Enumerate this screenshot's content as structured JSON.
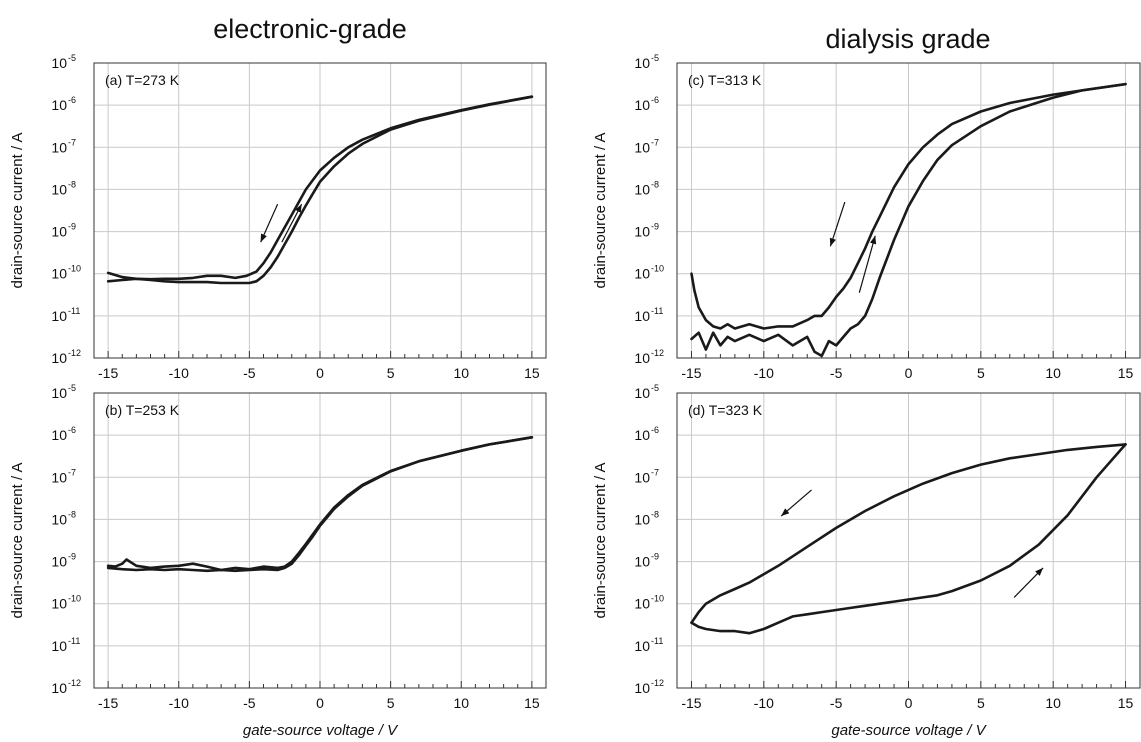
{
  "titles": {
    "left": "electronic-grade",
    "right": "dialysis grade"
  },
  "chart_data": [
    {
      "type": "line",
      "panel": "(a)",
      "temp_label": "T=273 K",
      "xlabel": "gate-source voltage / V",
      "ylabel": "drain-source current / A",
      "xlim": [
        -16,
        16
      ],
      "ylim_log10": [
        -12,
        -5
      ],
      "yscale": "log",
      "grid": true,
      "xticks": [
        -15,
        -10,
        -5,
        0,
        5,
        10,
        15
      ],
      "xtick_labels": [
        "-15",
        "-10",
        "-5",
        "0",
        "5",
        "10",
        "15"
      ],
      "ytick_exponents": [
        -12,
        -11,
        -10,
        -9,
        -8,
        -7,
        -6,
        -5
      ],
      "series": [
        {
          "x": [
            -15,
            -14,
            -13,
            -12,
            -11,
            -10,
            -9,
            -8,
            -7,
            -6,
            -5.2,
            -4.5,
            -4,
            -3.5,
            -3,
            -2.5,
            -2,
            -1.5,
            -1,
            0,
            1,
            2,
            3,
            5,
            7,
            10,
            12,
            15
          ],
          "log10_y": [
            -9.98,
            -10.08,
            -10.12,
            -10.13,
            -10.12,
            -10.12,
            -10.1,
            -10.05,
            -10.05,
            -10.1,
            -10.05,
            -9.95,
            -9.75,
            -9.5,
            -9.2,
            -8.9,
            -8.6,
            -8.3,
            -8.0,
            -7.55,
            -7.25,
            -7.0,
            -6.82,
            -6.55,
            -6.35,
            -6.12,
            -5.98,
            -5.8
          ]
        },
        {
          "x": [
            -15,
            -14,
            -13,
            -12,
            -11,
            -10,
            -9,
            -8,
            -7,
            -6,
            -5,
            -4.5,
            -4,
            -3.5,
            -3,
            -2.5,
            -2,
            -1.5,
            -1,
            -0.5,
            0,
            1,
            2,
            3,
            5,
            7,
            10,
            12,
            15
          ],
          "log10_y": [
            -10.18,
            -10.15,
            -10.12,
            -10.15,
            -10.18,
            -10.2,
            -10.2,
            -10.2,
            -10.22,
            -10.22,
            -10.22,
            -10.18,
            -10.05,
            -9.85,
            -9.6,
            -9.3,
            -9.0,
            -8.68,
            -8.38,
            -8.1,
            -7.82,
            -7.45,
            -7.15,
            -6.92,
            -6.58,
            -6.37,
            -6.13,
            -5.99,
            -5.8
          ]
        }
      ]
    },
    {
      "type": "line",
      "panel": "(b)",
      "temp_label": "T=253 K",
      "xlabel": "gate-source voltage / V",
      "ylabel": "drain-source current / A",
      "xlim": [
        -16,
        16
      ],
      "ylim_log10": [
        -12,
        -5
      ],
      "yscale": "log",
      "grid": true,
      "xticks": [
        -15,
        -10,
        -5,
        0,
        5,
        10,
        15
      ],
      "xtick_labels": [
        "-15",
        "-10",
        "-5",
        "0",
        "5",
        "10",
        "15"
      ],
      "ytick_exponents": [
        -12,
        -11,
        -10,
        -9,
        -8,
        -7,
        -6,
        -5
      ],
      "series": [
        {
          "x": [
            -15,
            -14.5,
            -14,
            -13.7,
            -13,
            -12,
            -11,
            -10,
            -9,
            -8,
            -7,
            -6,
            -5,
            -4,
            -3,
            -2.5,
            -2,
            -1.5,
            -1,
            -0.5,
            0,
            1,
            2,
            3,
            5,
            7,
            10,
            12,
            15
          ],
          "log10_y": [
            -9.1,
            -9.12,
            -9.05,
            -8.95,
            -9.1,
            -9.15,
            -9.12,
            -9.1,
            -9.05,
            -9.12,
            -9.2,
            -9.15,
            -9.18,
            -9.12,
            -9.15,
            -9.12,
            -9.0,
            -8.8,
            -8.58,
            -8.35,
            -8.12,
            -7.72,
            -7.42,
            -7.18,
            -6.85,
            -6.62,
            -6.37,
            -6.22,
            -6.05
          ]
        },
        {
          "x": [
            -15,
            -14,
            -13,
            -12,
            -11,
            -10,
            -9,
            -8,
            -7,
            -6,
            -5,
            -4,
            -3,
            -2.5,
            -2,
            -1.5,
            -1,
            -0.5,
            0,
            1,
            2,
            3,
            5,
            7,
            10,
            12,
            15
          ],
          "log10_y": [
            -9.15,
            -9.18,
            -9.2,
            -9.18,
            -9.2,
            -9.18,
            -9.2,
            -9.22,
            -9.2,
            -9.22,
            -9.2,
            -9.18,
            -9.2,
            -9.15,
            -9.05,
            -8.85,
            -8.62,
            -8.4,
            -8.15,
            -7.75,
            -7.45,
            -7.2,
            -6.86,
            -6.62,
            -6.37,
            -6.22,
            -6.05
          ]
        }
      ]
    },
    {
      "type": "line",
      "panel": "(c)",
      "temp_label": "T=313 K",
      "xlabel": "gate-source voltage / V",
      "ylabel": "drain-source current / A",
      "xlim": [
        -16,
        16
      ],
      "ylim_log10": [
        -12,
        -5
      ],
      "yscale": "log",
      "grid": true,
      "xticks": [
        -15,
        -10,
        -5,
        0,
        5,
        10,
        15
      ],
      "xtick_labels": [
        "-15",
        "-10",
        "-5",
        "0",
        "5",
        "10",
        "15"
      ],
      "ytick_exponents": [
        -12,
        -11,
        -10,
        -9,
        -8,
        -7,
        -6,
        -5
      ],
      "series": [
        {
          "x": [
            -15,
            -14.8,
            -14.5,
            -14,
            -13.5,
            -13,
            -12.5,
            -12,
            -11,
            -10,
            -9,
            -8,
            -7,
            -6.5,
            -6,
            -5.5,
            -5,
            -4.5,
            -4,
            -3.5,
            -3,
            -2.5,
            -2,
            -1.5,
            -1,
            0,
            1,
            2,
            3,
            5,
            7,
            10,
            12,
            15
          ],
          "log10_y": [
            -10.0,
            -10.4,
            -10.8,
            -11.1,
            -11.25,
            -11.3,
            -11.2,
            -11.3,
            -11.2,
            -11.3,
            -11.25,
            -11.25,
            -11.1,
            -11.0,
            -11.0,
            -10.8,
            -10.55,
            -10.35,
            -10.1,
            -9.75,
            -9.4,
            -9.0,
            -8.65,
            -8.3,
            -7.95,
            -7.4,
            -7.0,
            -6.7,
            -6.45,
            -6.15,
            -5.95,
            -5.75,
            -5.65,
            -5.5
          ]
        },
        {
          "x": [
            -15,
            -14.5,
            -14,
            -13.5,
            -13,
            -12.5,
            -12,
            -11,
            -10,
            -9,
            -8,
            -7,
            -6.5,
            -6,
            -5.5,
            -5,
            -4.5,
            -4,
            -3.5,
            -3,
            -2.5,
            -2,
            -1.5,
            -1,
            -0.5,
            0,
            1,
            2,
            3,
            5,
            7,
            10,
            12,
            15
          ],
          "log10_y": [
            -11.55,
            -11.4,
            -11.8,
            -11.4,
            -11.7,
            -11.5,
            -11.6,
            -11.45,
            -11.6,
            -11.45,
            -11.7,
            -11.5,
            -11.85,
            -11.95,
            -11.6,
            -11.7,
            -11.5,
            -11.3,
            -11.2,
            -11.0,
            -10.6,
            -10.1,
            -9.65,
            -9.2,
            -8.8,
            -8.4,
            -7.8,
            -7.3,
            -6.95,
            -6.5,
            -6.15,
            -5.82,
            -5.65,
            -5.5
          ]
        }
      ]
    },
    {
      "type": "line",
      "panel": "(d)",
      "temp_label": "T=323 K",
      "xlabel": "gate-source voltage / V",
      "ylabel": "drain-source current / A",
      "xlim": [
        -16,
        16
      ],
      "ylim_log10": [
        -12,
        -5
      ],
      "yscale": "log",
      "grid": true,
      "xticks": [
        -15,
        -10,
        -5,
        0,
        5,
        10,
        15
      ],
      "xtick_labels": [
        "-15",
        "-10",
        "-5",
        "0",
        "5",
        "10",
        "15"
      ],
      "ytick_exponents": [
        -12,
        -11,
        -10,
        -9,
        -8,
        -7,
        -6,
        -5
      ],
      "series": [
        {
          "x": [
            15,
            13,
            11,
            9,
            7,
            5,
            3,
            1,
            -1,
            -3,
            -5,
            -7,
            -9,
            -11,
            -12,
            -13,
            -14,
            -14.5,
            -15
          ],
          "log10_y": [
            -6.22,
            -6.28,
            -6.35,
            -6.45,
            -6.55,
            -6.7,
            -6.9,
            -7.15,
            -7.45,
            -7.8,
            -8.2,
            -8.65,
            -9.1,
            -9.5,
            -9.65,
            -9.8,
            -10.0,
            -10.2,
            -10.45
          ]
        },
        {
          "x": [
            -15,
            -14.5,
            -14,
            -13,
            -12,
            -11,
            -10,
            -9,
            -8,
            -7,
            -6,
            -5,
            -4,
            -3,
            -2,
            -1,
            0,
            1,
            2,
            3,
            5,
            7,
            9,
            11,
            13,
            15
          ],
          "log10_y": [
            -10.45,
            -10.55,
            -10.6,
            -10.65,
            -10.65,
            -10.7,
            -10.6,
            -10.45,
            -10.3,
            -10.25,
            -10.2,
            -10.15,
            -10.1,
            -10.05,
            -10.0,
            -9.95,
            -9.9,
            -9.85,
            -9.8,
            -9.7,
            -9.45,
            -9.1,
            -8.6,
            -7.9,
            -7.0,
            -6.22
          ]
        }
      ]
    }
  ]
}
